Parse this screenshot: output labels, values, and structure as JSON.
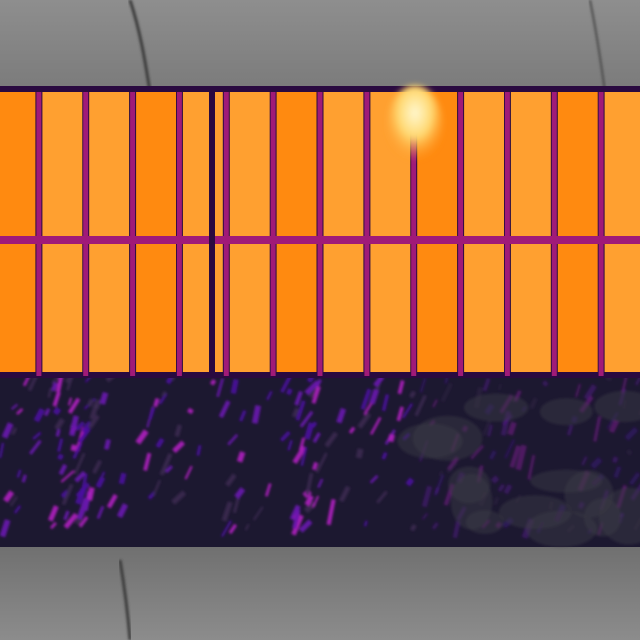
{
  "image": {
    "kind": "aerial thermal image of a solar panel row",
    "palette": {
      "background_ground": "#8a8a8a",
      "ground_dark": "#5c5c5c",
      "panel_cell": "#ff8a10",
      "panel_cell_light": "#ffa030",
      "panel_grid": "#a01a78",
      "panel_border": "#2a0a40",
      "hotspot": "#fff0b0",
      "vegetation_dark": "#1a1530",
      "vegetation_purple": "#6a18b0",
      "vegetation_magenta": "#b020c0"
    },
    "panel_array": {
      "columns": 14,
      "rows": 2,
      "hotspot_cell": {
        "row": 0,
        "column": 8
      }
    }
  }
}
